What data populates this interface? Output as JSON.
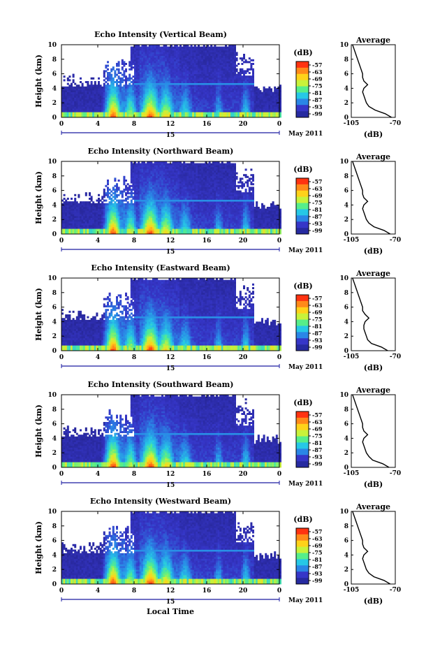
{
  "figure": {
    "xlabel": "Local Time",
    "date_label": "15",
    "month_label": "May 2011"
  },
  "colorbar": {
    "unit_label": "(dB)",
    "ticks": [
      "-57",
      "-63",
      "-69",
      "-75",
      "-81",
      "-87",
      "-93",
      "-99"
    ],
    "colors": [
      "#ff3311",
      "#ff8a1a",
      "#ffd21a",
      "#c8f23a",
      "#56ee8a",
      "#26c8e6",
      "#2a86e6",
      "#3636c8",
      "#262aa0"
    ]
  },
  "chart_data": [
    {
      "type": "heatmap",
      "title": "Echo Intensity (Vertical Beam)",
      "ylabel": "Height (km)",
      "xlim": [
        0,
        24
      ],
      "ylim": [
        0,
        10
      ],
      "xticks": [
        "0",
        "4",
        "8",
        "12",
        "16",
        "20",
        "0"
      ],
      "yticks": [
        "0",
        "2",
        "4",
        "6",
        "8",
        "10"
      ],
      "grid": false,
      "profile": {
        "title": "Average",
        "xlabel": "(dB)",
        "xlim": [
          -105,
          -70
        ],
        "xticks": [
          "-105",
          "-70"
        ],
        "yticks": [
          "0",
          "2",
          "4",
          "6",
          "8",
          "10"
        ],
        "height": [
          0,
          0.5,
          1,
          1.5,
          2,
          2.5,
          3,
          3.5,
          4,
          4.5,
          5,
          5.5,
          6,
          6.5,
          7,
          7.5,
          8,
          8.5,
          9,
          9.5,
          10
        ],
        "db": [
          -73,
          -78,
          -86,
          -91,
          -93,
          -94,
          -95,
          -96,
          -95,
          -92,
          -95,
          -96,
          -96,
          -97,
          -98,
          -99,
          -100,
          -101,
          -102,
          -103,
          -104
        ]
      }
    },
    {
      "type": "heatmap",
      "title": "Echo Intensity (Northward Beam)",
      "ylabel": "Height (km)",
      "xlim": [
        0,
        24
      ],
      "ylim": [
        0,
        10
      ],
      "xticks": [
        "0",
        "4",
        "8",
        "12",
        "16",
        "20",
        "0"
      ],
      "yticks": [
        "0",
        "2",
        "4",
        "6",
        "8",
        "10"
      ],
      "grid": false,
      "profile": {
        "title": "Average",
        "xlabel": "(dB)",
        "xlim": [
          -105,
          -70
        ],
        "xticks": [
          "-105",
          "-70"
        ],
        "yticks": [
          "0",
          "2",
          "4",
          "6",
          "8",
          "10"
        ],
        "height": [
          0,
          0.5,
          1,
          1.5,
          2,
          2.5,
          3,
          3.5,
          4,
          4.5,
          5,
          5.5,
          6,
          6.5,
          7,
          7.5,
          8,
          8.5,
          9,
          9.5,
          10
        ],
        "db": [
          -74,
          -79,
          -87,
          -91,
          -93,
          -94,
          -95,
          -96,
          -95,
          -92,
          -95,
          -96,
          -96,
          -97,
          -98,
          -99,
          -100,
          -101,
          -102,
          -103,
          -104
        ]
      }
    },
    {
      "type": "heatmap",
      "title": "Echo Intensity (Eastward Beam)",
      "ylabel": "Height (km)",
      "xlim": [
        0,
        24
      ],
      "ylim": [
        0,
        10
      ],
      "xticks": [
        "0",
        "4",
        "8",
        "12",
        "16",
        "20",
        "0"
      ],
      "yticks": [
        "0",
        "2",
        "4",
        "6",
        "8",
        "10"
      ],
      "grid": false,
      "profile": {
        "title": "Average",
        "xlabel": "(dB)",
        "xlim": [
          -105,
          -70
        ],
        "xticks": [
          "-105",
          "-70"
        ],
        "yticks": [
          "0",
          "2",
          "4",
          "6",
          "8",
          "10"
        ],
        "height": [
          0,
          0.5,
          1,
          1.5,
          2,
          2.5,
          3,
          3.5,
          4,
          4.5,
          5,
          5.5,
          6,
          6.5,
          7,
          7.5,
          8,
          8.5,
          9,
          9.5,
          10
        ],
        "db": [
          -76,
          -81,
          -89,
          -92,
          -93,
          -94,
          -95,
          -95,
          -94,
          -91,
          -94,
          -96,
          -96,
          -97,
          -98,
          -99,
          -100,
          -101,
          -102,
          -103,
          -104
        ]
      }
    },
    {
      "type": "heatmap",
      "title": "Echo Intensity (Southward Beam)",
      "ylabel": "Height (km)",
      "xlim": [
        0,
        24
      ],
      "ylim": [
        0,
        10
      ],
      "xticks": [
        "0",
        "4",
        "8",
        "12",
        "16",
        "20",
        "0"
      ],
      "yticks": [
        "0",
        "2",
        "4",
        "6",
        "8",
        "10"
      ],
      "grid": false,
      "profile": {
        "title": "Average",
        "xlabel": "(dB)",
        "xlim": [
          -105,
          -70
        ],
        "xticks": [
          "-105",
          "-70"
        ],
        "yticks": [
          "0",
          "2",
          "4",
          "6",
          "8",
          "10"
        ],
        "height": [
          0,
          0.5,
          1,
          1.5,
          2,
          2.5,
          3,
          3.5,
          4,
          4.5,
          5,
          5.5,
          6,
          6.5,
          7,
          7.5,
          8,
          8.5,
          9,
          9.5,
          10
        ],
        "db": [
          -75,
          -80,
          -88,
          -91,
          -93,
          -94,
          -95,
          -96,
          -95,
          -92,
          -95,
          -96,
          -96,
          -97,
          -98,
          -99,
          -100,
          -101,
          -102,
          -103,
          -104
        ]
      }
    },
    {
      "type": "heatmap",
      "title": "Echo Intensity (Westward Beam)",
      "ylabel": "Height (km)",
      "xlim": [
        0,
        24
      ],
      "ylim": [
        0,
        10
      ],
      "xticks": [
        "0",
        "4",
        "8",
        "12",
        "16",
        "20",
        "0"
      ],
      "yticks": [
        "0",
        "2",
        "4",
        "6",
        "8",
        "10"
      ],
      "grid": false,
      "profile": {
        "title": "Average",
        "xlabel": "(dB)",
        "xlim": [
          -105,
          -70
        ],
        "xticks": [
          "-105",
          "-70"
        ],
        "yticks": [
          "0",
          "2",
          "4",
          "6",
          "8",
          "10"
        ],
        "height": [
          0,
          0.5,
          1,
          1.5,
          2,
          2.5,
          3,
          3.5,
          4,
          4.5,
          5,
          5.5,
          6,
          6.5,
          7,
          7.5,
          8,
          8.5,
          9,
          9.5,
          10
        ],
        "db": [
          -74,
          -79,
          -87,
          -91,
          -93,
          -94,
          -95,
          -96,
          -95,
          -92,
          -95,
          -96,
          -96,
          -97,
          -98,
          -99,
          -100,
          -101,
          -102,
          -103,
          -104
        ]
      }
    }
  ]
}
